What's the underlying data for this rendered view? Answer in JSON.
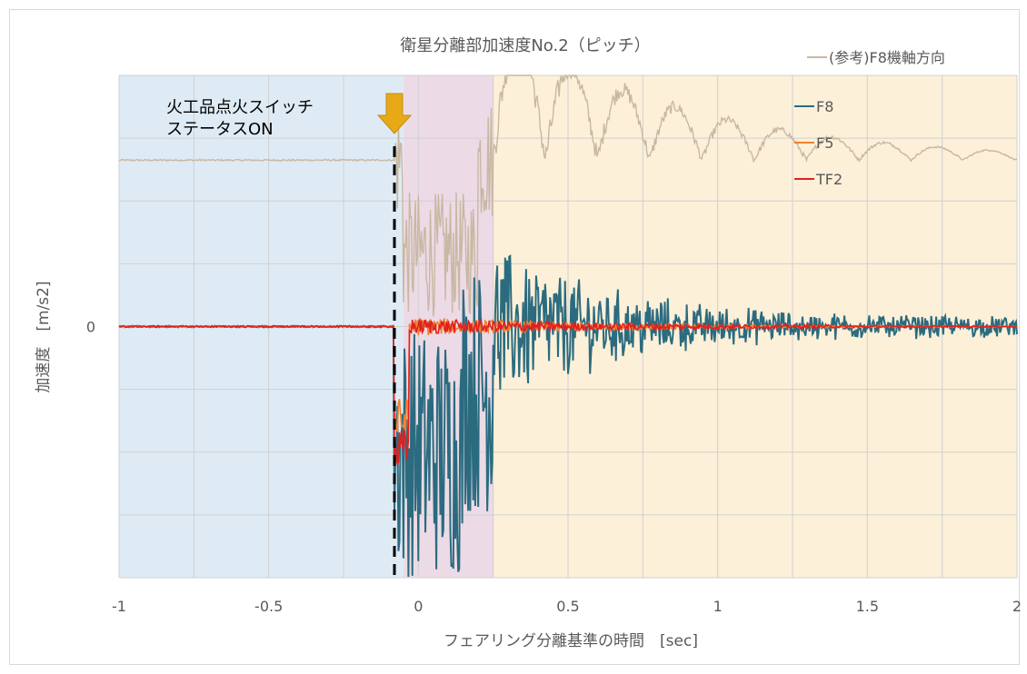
{
  "chart_data": {
    "type": "line",
    "title": "衛星分離部加速度No.2（ピッチ）",
    "xlabel": "フェアリング分離基準の時間　[sec]",
    "ylabel": "加速度　[m/s2]",
    "xlim": [
      -1,
      2
    ],
    "ylim": [
      -8,
      8
    ],
    "x_ticks": [
      -1,
      -0.5,
      0,
      0.5,
      1,
      1.5,
      2
    ],
    "x_tick_labels": [
      "-1",
      "-0.5",
      "0",
      "0.5",
      "1",
      "1.5",
      "2"
    ],
    "y_tick_labels": [
      {
        "value": 0,
        "label": "0"
      }
    ],
    "grid": true,
    "legend_placement": "top-right",
    "regions": [
      {
        "x0": -1,
        "x1": -0.05,
        "color": "#deebf5"
      },
      {
        "x0": -0.05,
        "x1": 0.25,
        "color": "#ecdbe6"
      },
      {
        "x0": 0.25,
        "x1": 2,
        "color": "#fcf0d9"
      }
    ],
    "event": {
      "x": -0.08,
      "label_lines": [
        "火工品点火スイッチ",
        "ステータスON"
      ],
      "arrow_color": "#e8a917"
    },
    "series": [
      {
        "name": "(参考)F8機軸方向",
        "color": "#c8b8a2"
      },
      {
        "name": "F8",
        "color": "#2b6b7f"
      },
      {
        "name": "F5",
        "color": "#f28030"
      },
      {
        "name": "TF2",
        "color": "#e02020"
      }
    ]
  }
}
